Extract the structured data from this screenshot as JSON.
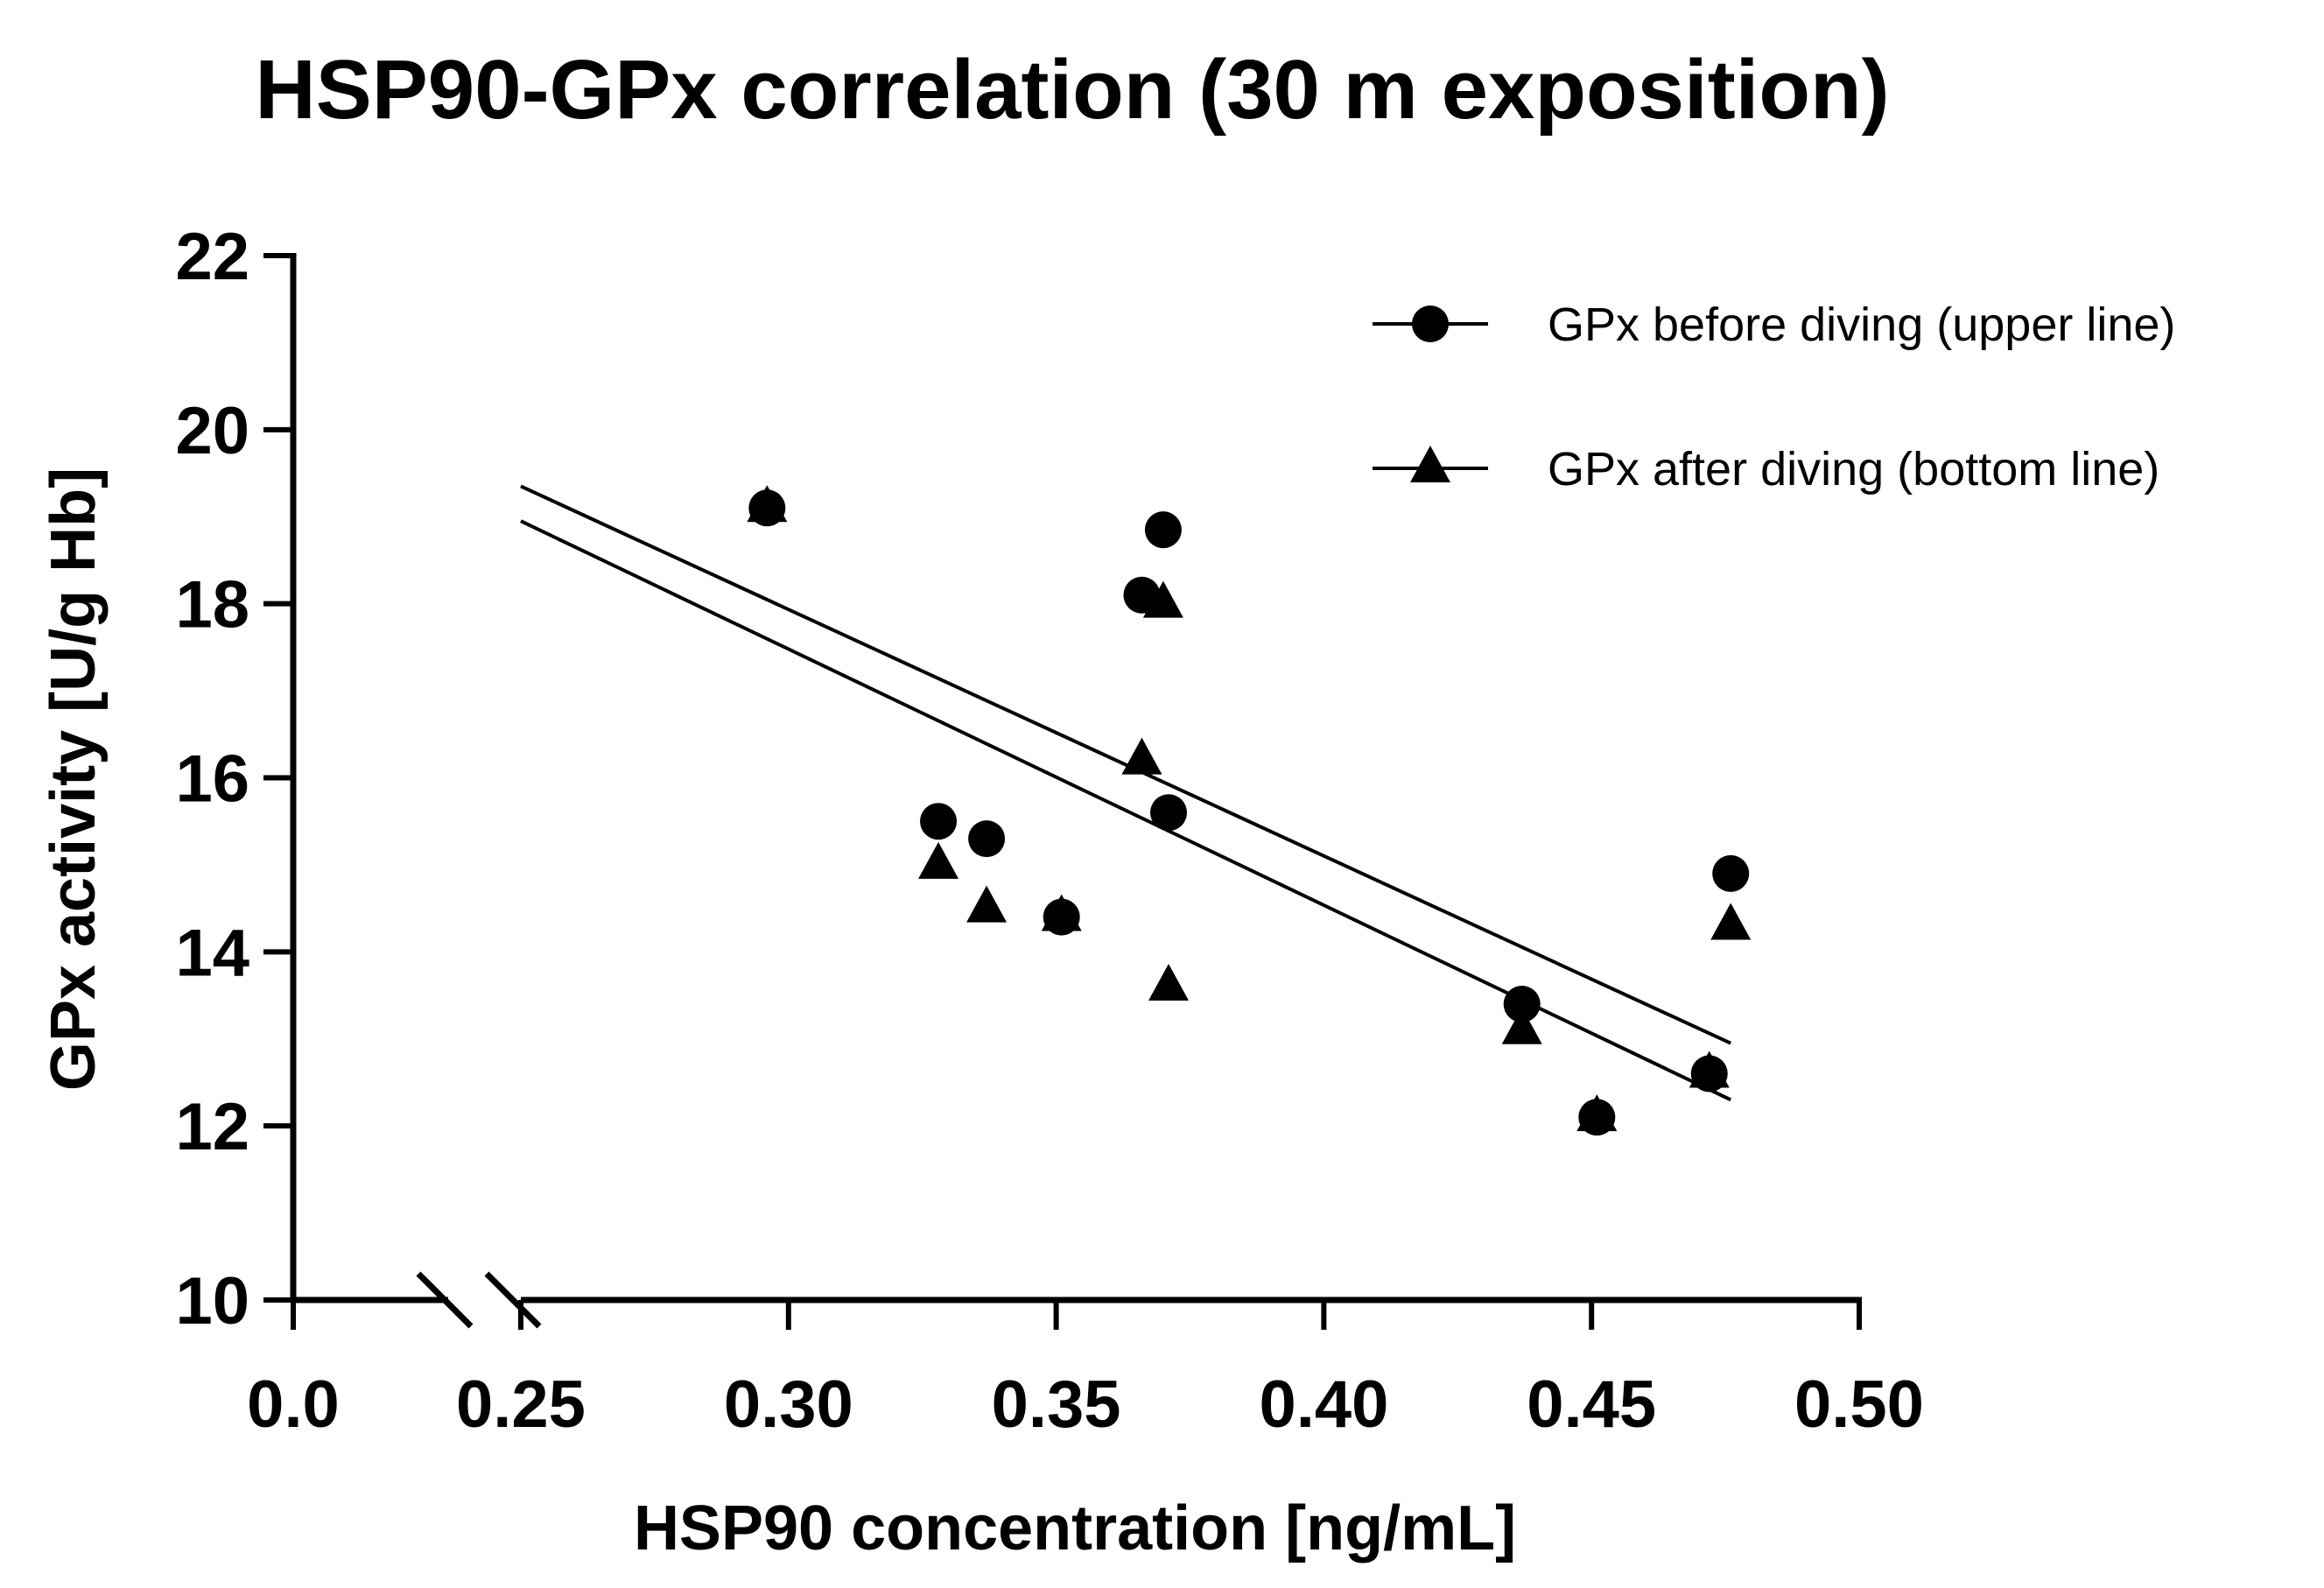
{
  "chart_data": {
    "type": "scatter",
    "title": "HSP90-GPx correlation (30 m exposition)",
    "xlabel": "HSP90 concentration [ng/mL]",
    "ylabel": "GPx activity [U/g Hb]",
    "xlim": [
      0.0,
      0.5
    ],
    "ylim": [
      10,
      22
    ],
    "x_axis_break": [
      0.0,
      0.25
    ],
    "x_ticks": [
      0.0,
      0.25,
      0.3,
      0.35,
      0.4,
      0.45,
      0.5
    ],
    "x_tick_labels": [
      "0.0",
      "0.25",
      "0.30",
      "0.35",
      "0.40",
      "0.45",
      "0.50"
    ],
    "y_ticks": [
      10,
      12,
      14,
      16,
      18,
      20,
      22
    ],
    "y_tick_labels": [
      "10",
      "12",
      "14",
      "16",
      "18",
      "20",
      "22"
    ],
    "grid": false,
    "legend_position": "top-right",
    "series": [
      {
        "name": "GPx before diving (upper line)",
        "marker": "circle",
        "color": "#000000",
        "x": [
          0.296,
          0.328,
          0.337,
          0.351,
          0.366,
          0.37,
          0.371,
          0.437,
          0.451,
          0.472,
          0.476
        ],
        "y": [
          19.1,
          15.5,
          15.3,
          14.4,
          18.1,
          18.85,
          15.6,
          13.4,
          12.1,
          12.6,
          14.9
        ],
        "fit": {
          "x": [
            0.25,
            0.476
          ],
          "y": [
            19.35,
            12.95
          ]
        }
      },
      {
        "name": "GPx after diving (bottom line)",
        "marker": "triangle",
        "color": "#000000",
        "x": [
          0.296,
          0.328,
          0.337,
          0.351,
          0.366,
          0.37,
          0.371,
          0.437,
          0.451,
          0.472,
          0.476
        ],
        "y": [
          19.1,
          15.0,
          14.5,
          14.4,
          16.2,
          18.0,
          13.6,
          13.1,
          12.1,
          12.6,
          14.3
        ],
        "fit": {
          "x": [
            0.25,
            0.476
          ],
          "y": [
            18.95,
            12.3
          ]
        }
      }
    ]
  }
}
